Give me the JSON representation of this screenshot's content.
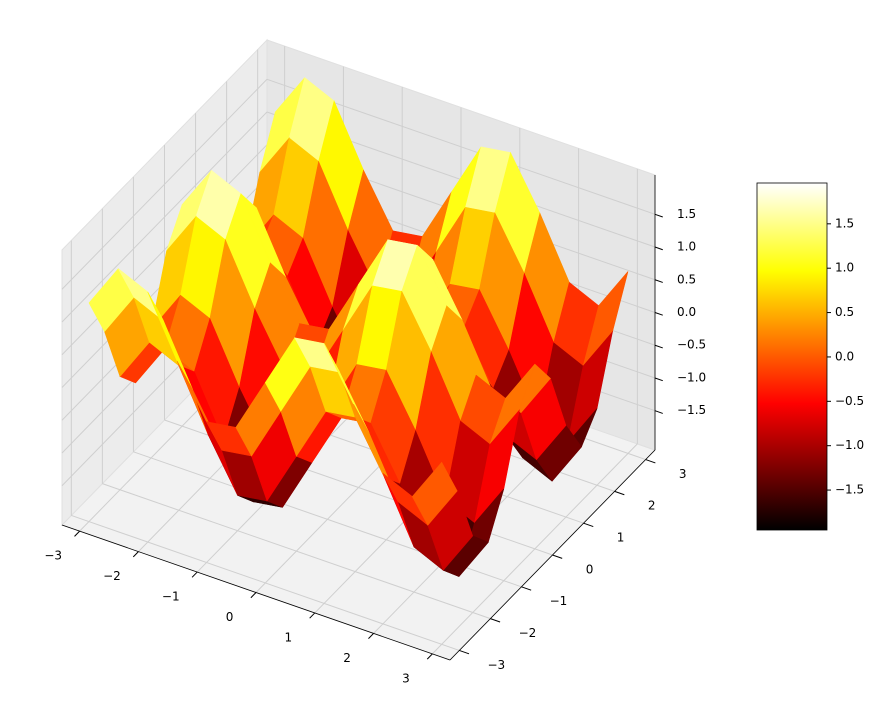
{
  "chart_data": {
    "type": "surface",
    "colormap": "hot",
    "x": [
      -3,
      -2.5,
      -2,
      -1.5,
      -1,
      -0.5,
      0,
      0.5,
      1,
      1.5,
      2,
      2.5,
      3
    ],
    "y": [
      -3,
      -2.5,
      -2,
      -1.5,
      -1,
      -0.5,
      0,
      0.5,
      1,
      1.5,
      2,
      2.5,
      3
    ],
    "z": [
      [
        1.24,
        1.92,
        1.72,
        0.82,
        0.05,
        0.12,
        0.96,
        1.8,
        1.87,
        1.1,
        0.2,
        0.0,
        0.68
      ],
      [
        0.56,
        1.24,
        1.04,
        0.14,
        -0.63,
        -0.56,
        0.28,
        1.12,
        1.19,
        0.42,
        -0.48,
        -0.68,
        0.0
      ],
      [
        -0.37,
        0.31,
        0.11,
        -0.79,
        -1.56,
        -1.49,
        -0.65,
        0.19,
        0.26,
        -0.51,
        -1.41,
        -1.61,
        -0.93
      ],
      [
        -0.71,
        -0.03,
        -0.23,
        -1.13,
        -1.9,
        -1.83,
        -0.99,
        -0.15,
        -0.08,
        -0.85,
        -1.75,
        -1.95,
        -1.27
      ],
      [
        -0.14,
        0.54,
        0.34,
        -0.56,
        -1.33,
        -1.26,
        -0.42,
        0.42,
        0.49,
        -0.28,
        -1.18,
        -1.38,
        -0.7
      ],
      [
        0.82,
        1.5,
        1.3,
        0.4,
        -0.37,
        -0.3,
        0.54,
        1.38,
        1.45,
        0.68,
        -0.22,
        -0.42,
        0.26
      ],
      [
        1.28,
        1.96,
        1.76,
        0.86,
        0.09,
        0.16,
        1.0,
        1.84,
        1.91,
        1.14,
        0.24,
        0.04,
        0.72
      ],
      [
        0.82,
        1.5,
        1.3,
        0.4,
        -0.37,
        -0.3,
        0.54,
        1.38,
        1.45,
        0.68,
        -0.22,
        -0.42,
        0.26
      ],
      [
        -0.14,
        0.54,
        0.34,
        -0.56,
        -1.33,
        -1.26,
        -0.42,
        0.42,
        0.49,
        -0.28,
        -1.18,
        -1.38,
        -0.7
      ],
      [
        -0.71,
        -0.03,
        -0.23,
        -1.13,
        -1.9,
        -1.83,
        -0.99,
        -0.15,
        -0.08,
        -0.85,
        -1.75,
        -1.95,
        -1.27
      ],
      [
        -0.37,
        0.31,
        0.11,
        -0.79,
        -1.56,
        -1.49,
        -0.65,
        0.19,
        0.26,
        -0.51,
        -1.41,
        -1.61,
        -0.93
      ],
      [
        0.56,
        1.24,
        1.04,
        0.14,
        -0.63,
        -0.56,
        0.28,
        1.12,
        1.19,
        0.42,
        -0.48,
        -0.68,
        0.0
      ],
      [
        1.24,
        1.92,
        1.72,
        0.82,
        0.05,
        0.12,
        0.96,
        1.8,
        1.87,
        1.1,
        0.2,
        0.0,
        0.68
      ]
    ],
    "xlim": [
      -3.3,
      3.3
    ],
    "ylim": [
      -3.3,
      3.3
    ],
    "zlim": [
      -2.1,
      2.1
    ],
    "xticks": [
      {
        "value": -3,
        "label": "−3"
      },
      {
        "value": -2,
        "label": "−2"
      },
      {
        "value": -1,
        "label": "−1"
      },
      0,
      1,
      2,
      3
    ],
    "yticks": [
      {
        "value": -3,
        "label": "−3"
      },
      {
        "value": -2,
        "label": "−2"
      },
      {
        "value": -1,
        "label": "−1"
      },
      0,
      1,
      2,
      3
    ],
    "zticks": [
      {
        "value": -1.5,
        "label": "−1.5"
      },
      {
        "value": -1,
        "label": "−1.0"
      },
      {
        "value": -0.5,
        "label": "−0.5"
      },
      {
        "value": 0,
        "label": "0.0"
      },
      0.5,
      {
        "value": 1,
        "label": "1.0"
      },
      1.5
    ],
    "clim": [
      -1.95,
      1.96
    ],
    "colorbar_ticks": [
      {
        "value": -1.5,
        "label": "−1.5"
      },
      {
        "value": -1,
        "label": "−1.0"
      },
      {
        "value": -0.5,
        "label": "−0.5"
      },
      {
        "value": 0,
        "label": "0.0"
      },
      0.5,
      {
        "value": 1,
        "label": "1.0"
      },
      1.5
    ],
    "grid": true
  }
}
